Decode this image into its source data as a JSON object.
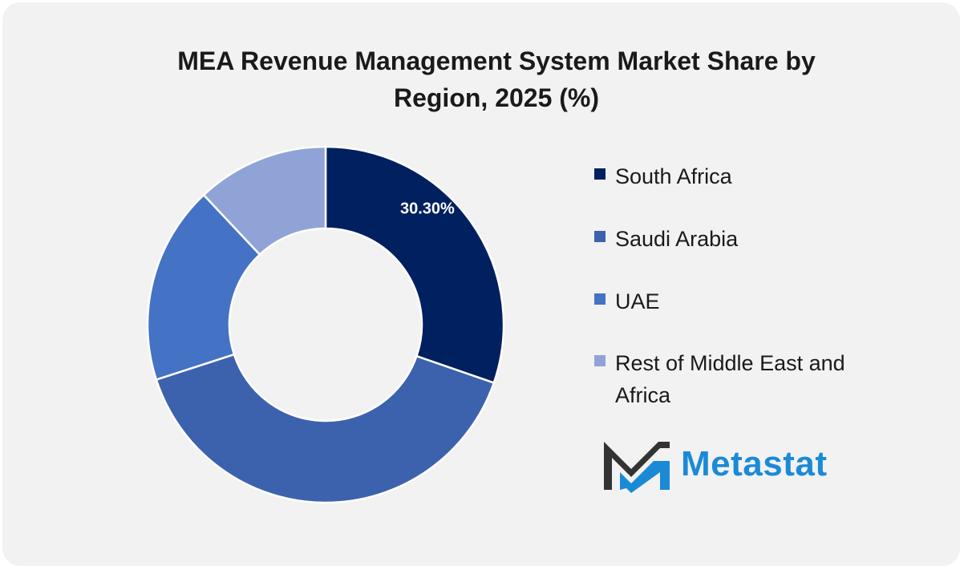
{
  "chart_data": {
    "type": "pie",
    "variant": "donut",
    "title_lines": [
      "MEA Revenue Management System Market Share by",
      "Region, 2025 (%)"
    ],
    "categories": [
      "South Africa",
      "Saudi Arabia",
      "UAE",
      "Rest of Middle East and Africa"
    ],
    "values": [
      30.3,
      39.7,
      18.0,
      12.0
    ],
    "data_labels": [
      "30.30%",
      "",
      "",
      ""
    ],
    "colors": [
      "#002060",
      "#3d62ad",
      "#4472c4",
      "#8fa3d6"
    ],
    "legend_position": "right"
  },
  "logo": {
    "text": "Metastat",
    "mark_colors": [
      "#333333",
      "#1b8ad6"
    ]
  }
}
